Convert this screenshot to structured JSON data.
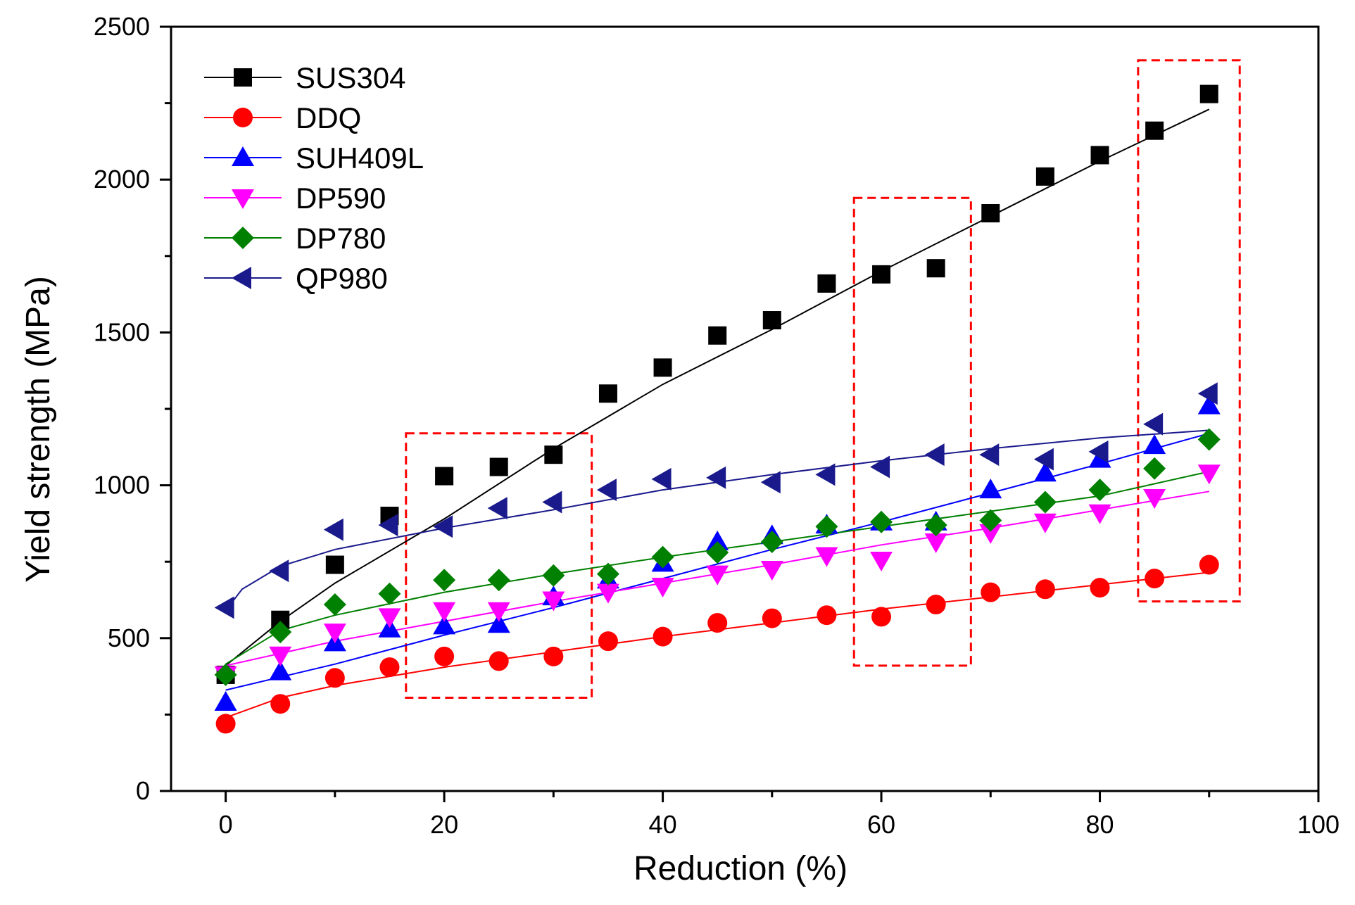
{
  "chart_data": {
    "type": "scatter",
    "title": "",
    "xlabel": "Reduction (%)",
    "ylabel": "Yield strength (MPa)",
    "xlim": [
      -5,
      100
    ],
    "ylim": [
      0,
      2500
    ],
    "xticks": [
      0,
      20,
      40,
      60,
      80,
      100
    ],
    "yticks": [
      0,
      500,
      1000,
      1500,
      2000,
      2500
    ],
    "x": [
      0,
      5,
      10,
      15,
      20,
      25,
      30,
      35,
      40,
      45,
      50,
      55,
      60,
      65,
      70,
      75,
      80,
      85,
      90
    ],
    "legend_position": "top-left",
    "grid": false,
    "series": [
      {
        "name": "SUS304",
        "marker": "square",
        "color": "#000000",
        "values": [
          380,
          560,
          740,
          900,
          1030,
          1060,
          1100,
          1300,
          1385,
          1490,
          1540,
          1660,
          1690,
          1710,
          1890,
          2010,
          2080,
          2160,
          2280
        ],
        "fit": [
          [
            0,
            410
          ],
          [
            5,
            555
          ],
          [
            10,
            680
          ],
          [
            20,
            890
          ],
          [
            30,
            1120
          ],
          [
            40,
            1330
          ],
          [
            50,
            1510
          ],
          [
            60,
            1700
          ],
          [
            70,
            1880
          ],
          [
            80,
            2060
          ],
          [
            90,
            2230
          ]
        ]
      },
      {
        "name": "DDQ",
        "marker": "circle",
        "color": "#ff0000",
        "values": [
          220,
          285,
          370,
          405,
          440,
          425,
          440,
          490,
          505,
          550,
          565,
          575,
          570,
          610,
          650,
          660,
          665,
          695,
          740
        ],
        "fit": [
          [
            0,
            240
          ],
          [
            5,
            305
          ],
          [
            10,
            345
          ],
          [
            20,
            405
          ],
          [
            30,
            455
          ],
          [
            40,
            505
          ],
          [
            50,
            550
          ],
          [
            60,
            595
          ],
          [
            70,
            635
          ],
          [
            80,
            675
          ],
          [
            90,
            715
          ]
        ]
      },
      {
        "name": "SUH409L",
        "marker": "triangle-up",
        "color": "#0000ff",
        "values": [
          290,
          390,
          485,
          530,
          540,
          545,
          635,
          690,
          745,
          815,
          835,
          870,
          880,
          880,
          985,
          1040,
          1085,
          1130,
          1260
        ],
        "fit": [
          [
            0,
            330
          ],
          [
            10,
            415
          ],
          [
            20,
            510
          ],
          [
            30,
            600
          ],
          [
            40,
            695
          ],
          [
            50,
            790
          ],
          [
            60,
            880
          ],
          [
            70,
            975
          ],
          [
            80,
            1070
          ],
          [
            90,
            1170
          ]
        ]
      },
      {
        "name": "DP590",
        "marker": "triangle-down",
        "color": "#ff00ff",
        "values": [
          380,
          445,
          520,
          570,
          590,
          590,
          625,
          650,
          670,
          710,
          725,
          770,
          755,
          815,
          845,
          880,
          910,
          960,
          1040
        ],
        "fit": [
          [
            0,
            410
          ],
          [
            5,
            450
          ],
          [
            10,
            490
          ],
          [
            20,
            555
          ],
          [
            30,
            620
          ],
          [
            40,
            680
          ],
          [
            50,
            740
          ],
          [
            60,
            805
          ],
          [
            70,
            860
          ],
          [
            80,
            920
          ],
          [
            90,
            980
          ]
        ]
      },
      {
        "name": "DP780",
        "marker": "diamond",
        "color": "#008000",
        "values": [
          380,
          520,
          610,
          645,
          690,
          690,
          705,
          710,
          765,
          780,
          815,
          865,
          880,
          870,
          885,
          945,
          985,
          1055,
          1150
        ],
        "fit": [
          [
            0,
            415
          ],
          [
            5,
            525
          ],
          [
            10,
            575
          ],
          [
            20,
            650
          ],
          [
            30,
            710
          ],
          [
            40,
            765
          ],
          [
            50,
            815
          ],
          [
            60,
            865
          ],
          [
            70,
            915
          ],
          [
            80,
            965
          ],
          [
            90,
            1045
          ]
        ]
      },
      {
        "name": "QP980",
        "marker": "triangle-left",
        "color": "#1a1a8c",
        "values": [
          600,
          720,
          855,
          870,
          865,
          925,
          945,
          985,
          1020,
          1025,
          1010,
          1035,
          1060,
          1100,
          1100,
          1085,
          1110,
          1200,
          1300
        ],
        "fit": [
          [
            0,
            590
          ],
          [
            1.5,
            660
          ],
          [
            5,
            735
          ],
          [
            10,
            790
          ],
          [
            20,
            860
          ],
          [
            30,
            920
          ],
          [
            40,
            985
          ],
          [
            50,
            1035
          ],
          [
            60,
            1080
          ],
          [
            70,
            1120
          ],
          [
            80,
            1155
          ],
          [
            90,
            1180
          ]
        ]
      }
    ],
    "annotations": [
      {
        "type": "dashed-box",
        "color": "#ff0000",
        "x_range": [
          16.5,
          33.5
        ],
        "y_range": [
          305,
          1170
        ]
      },
      {
        "type": "dashed-box",
        "color": "#ff0000",
        "x_range": [
          57.5,
          68.2
        ],
        "y_range": [
          410,
          1940
        ]
      },
      {
        "type": "dashed-box",
        "color": "#ff0000",
        "x_range": [
          83.5,
          92.8
        ],
        "y_range": [
          620,
          2390
        ]
      }
    ]
  }
}
